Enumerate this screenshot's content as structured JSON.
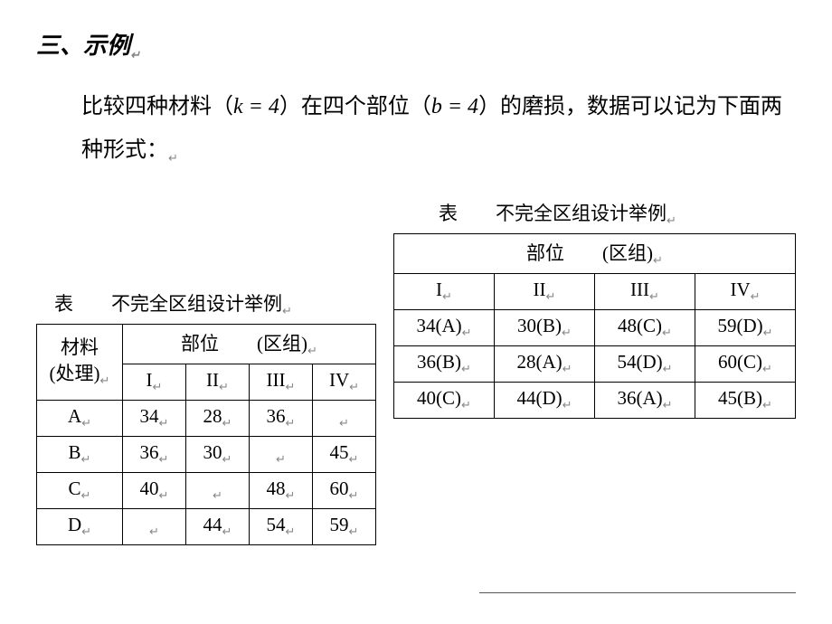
{
  "heading": "三、示例",
  "description_prefix": "比较四种材料（",
  "k_expr": "k = 4",
  "description_mid": "）在四个部位（",
  "b_expr": "b = 4",
  "description_suffix": "）的磨损，数据可以记为下面两种形式：",
  "left_table": {
    "caption": "表　　不完全区组设计举例",
    "header_col1_line1": "材料",
    "header_col1_line2": "(处理)",
    "header_group": "部位　　(区组)",
    "cols": [
      "I",
      "II",
      "III",
      "IV"
    ],
    "rows": [
      {
        "label": "A",
        "vals": [
          "34",
          "28",
          "36",
          ""
        ]
      },
      {
        "label": "B",
        "vals": [
          "36",
          "30",
          "",
          "45"
        ]
      },
      {
        "label": "C",
        "vals": [
          "40",
          "",
          "48",
          "60"
        ]
      },
      {
        "label": "D",
        "vals": [
          "",
          "44",
          "54",
          "59"
        ]
      }
    ]
  },
  "right_table": {
    "caption": "表　　不完全区组设计举例",
    "header_group": "部位　　(区组)",
    "cols": [
      "I",
      "II",
      "III",
      "IV"
    ],
    "rows": [
      [
        "34(A)",
        "30(B)",
        "48(C)",
        "59(D)"
      ],
      [
        "36(B)",
        "28(A)",
        "54(D)",
        "60(C)"
      ],
      [
        "40(C)",
        "44(D)",
        "36(A)",
        "45(B)"
      ]
    ]
  },
  "marker": "↵"
}
